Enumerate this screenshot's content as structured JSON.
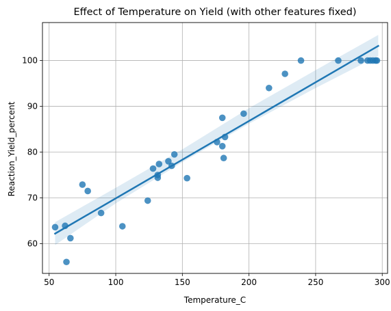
{
  "chart_data": {
    "type": "scatter",
    "title": "Effect of Temperature on Yield (with other features fixed)",
    "xlabel": "Temperature_C",
    "ylabel": "Reaction_Yield_percent",
    "xlim": [
      45,
      304
    ],
    "ylim": [
      53.5,
      108.3
    ],
    "xticks": [
      50,
      100,
      150,
      200,
      250,
      300
    ],
    "yticks": [
      60,
      70,
      80,
      90,
      100
    ],
    "grid": true,
    "colors": {
      "points": "#1f77b4",
      "line": "#1f77b4",
      "band": "#1f77b4"
    },
    "points": [
      {
        "x": 54.5,
        "y": 63.6
      },
      {
        "x": 62,
        "y": 63.9
      },
      {
        "x": 63,
        "y": 56.0
      },
      {
        "x": 66,
        "y": 61.2
      },
      {
        "x": 75,
        "y": 72.9
      },
      {
        "x": 79,
        "y": 71.5
      },
      {
        "x": 89,
        "y": 66.7
      },
      {
        "x": 105,
        "y": 63.8
      },
      {
        "x": 124,
        "y": 69.4
      },
      {
        "x": 128,
        "y": 76.4
      },
      {
        "x": 131.5,
        "y": 74.4
      },
      {
        "x": 131.5,
        "y": 75.0
      },
      {
        "x": 132.5,
        "y": 77.4
      },
      {
        "x": 139.5,
        "y": 78.0
      },
      {
        "x": 142,
        "y": 77.0
      },
      {
        "x": 144,
        "y": 79.5
      },
      {
        "x": 153.5,
        "y": 74.3
      },
      {
        "x": 176,
        "y": 82.2
      },
      {
        "x": 180,
        "y": 87.5
      },
      {
        "x": 180,
        "y": 81.3
      },
      {
        "x": 181,
        "y": 78.7
      },
      {
        "x": 182,
        "y": 83.3
      },
      {
        "x": 196,
        "y": 88.4
      },
      {
        "x": 215,
        "y": 94.0
      },
      {
        "x": 227,
        "y": 97.1
      },
      {
        "x": 239,
        "y": 100.0
      },
      {
        "x": 267,
        "y": 100.0
      },
      {
        "x": 284,
        "y": 100.0
      },
      {
        "x": 289,
        "y": 100.0
      },
      {
        "x": 291,
        "y": 100.0
      },
      {
        "x": 293,
        "y": 100.0
      },
      {
        "x": 295,
        "y": 100.0
      },
      {
        "x": 296,
        "y": 100.0
      }
    ],
    "regression": {
      "x": [
        54.5,
        297
      ],
      "y": [
        62.2,
        103.2
      ],
      "ci_band": {
        "x": [
          54.5,
          100,
          150,
          200,
          250,
          297
        ],
        "lower": [
          59.7,
          68.8,
          77.8,
          86.2,
          94.0,
          101.0
        ],
        "upper": [
          64.7,
          72.2,
          80.6,
          89.6,
          97.9,
          105.6
        ]
      }
    }
  }
}
